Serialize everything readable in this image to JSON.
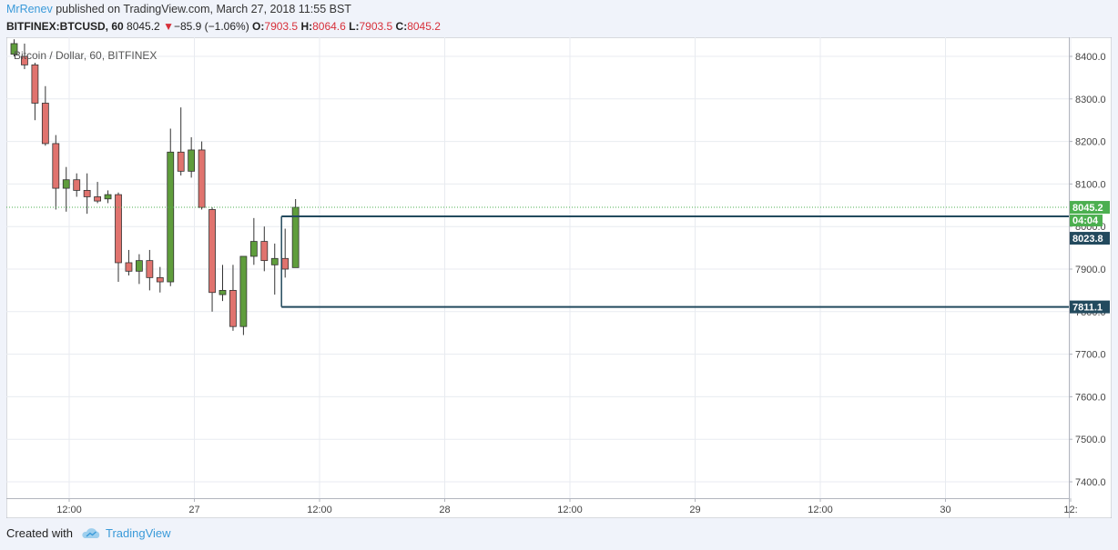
{
  "header": {
    "author": "MrRenev",
    "published_text": " published on TradingView.com, March 27, 2018 11:55 BST",
    "symbol": "BITFINEX:BTCUSD, 60",
    "last": "8045.2",
    "arrow": "▼",
    "change": "−85.9 (−1.06%)",
    "o_label": "O:",
    "o_value": "7903.5",
    "h_label": "H:",
    "h_value": "8064.6",
    "l_label": "L:",
    "l_value": "7903.5",
    "c_label": "C:",
    "c_value": "8045.2"
  },
  "footer": {
    "created_with": "Created with",
    "brand": "TradingView"
  },
  "chart_data": {
    "type": "candlestick",
    "title": "Bitcoin / Dollar, 60, BITFINEX",
    "ylim": [
      7365,
      8430
    ],
    "y_ticks": [
      "8400.0",
      "8300.0",
      "8200.0",
      "8100.0",
      "8000.0",
      "7900.0",
      "7800.0",
      "7700.0",
      "7600.0",
      "7500.0",
      "7400.0"
    ],
    "x_labels": [
      "12:00",
      "27",
      "12:00",
      "28",
      "12:00",
      "29",
      "12:00",
      "30",
      "12:"
    ],
    "candles": [
      {
        "o": 8405,
        "h": 8440,
        "l": 8400,
        "c": 8430
      },
      {
        "o": 8400,
        "h": 8430,
        "l": 8370,
        "c": 8380
      },
      {
        "o": 8380,
        "h": 8385,
        "l": 8250,
        "c": 8290
      },
      {
        "o": 8290,
        "h": 8330,
        "l": 8190,
        "c": 8195
      },
      {
        "o": 8195,
        "h": 8215,
        "l": 8040,
        "c": 8090
      },
      {
        "o": 8090,
        "h": 8140,
        "l": 8035,
        "c": 8110
      },
      {
        "o": 8110,
        "h": 8125,
        "l": 8070,
        "c": 8085
      },
      {
        "o": 8085,
        "h": 8125,
        "l": 8030,
        "c": 8070
      },
      {
        "o": 8070,
        "h": 8105,
        "l": 8055,
        "c": 8060
      },
      {
        "o": 8065,
        "h": 8085,
        "l": 8055,
        "c": 8075
      },
      {
        "o": 8075,
        "h": 8080,
        "l": 7870,
        "c": 7915
      },
      {
        "o": 7915,
        "h": 7945,
        "l": 7885,
        "c": 7895
      },
      {
        "o": 7895,
        "h": 7935,
        "l": 7865,
        "c": 7920
      },
      {
        "o": 7920,
        "h": 7945,
        "l": 7850,
        "c": 7880
      },
      {
        "o": 7880,
        "h": 7905,
        "l": 7845,
        "c": 7870
      },
      {
        "o": 7870,
        "h": 8230,
        "l": 7860,
        "c": 8175
      },
      {
        "o": 8175,
        "h": 8280,
        "l": 8120,
        "c": 8130
      },
      {
        "o": 8130,
        "h": 8210,
        "l": 8115,
        "c": 8180
      },
      {
        "o": 8180,
        "h": 8200,
        "l": 8040,
        "c": 8045
      },
      {
        "o": 8040,
        "h": 8045,
        "l": 7800,
        "c": 7845
      },
      {
        "o": 7840,
        "h": 7910,
        "l": 7825,
        "c": 7850
      },
      {
        "o": 7850,
        "h": 7910,
        "l": 7755,
        "c": 7765
      },
      {
        "o": 7765,
        "h": 7930,
        "l": 7745,
        "c": 7930
      },
      {
        "o": 7930,
        "h": 8020,
        "l": 7910,
        "c": 7965
      },
      {
        "o": 7965,
        "h": 8000,
        "l": 7895,
        "c": 7920
      },
      {
        "o": 7910,
        "h": 7960,
        "l": 7840,
        "c": 7925
      },
      {
        "o": 7925,
        "h": 7995,
        "l": 7880,
        "c": 7900
      },
      {
        "o": 7903.5,
        "h": 8064.6,
        "l": 7903.5,
        "c": 8045.2
      }
    ],
    "current_price": 8045.2,
    "price_label": "8045.2",
    "countdown": "04:04",
    "range_box": {
      "top": 8023.8,
      "bottom": 7811.1,
      "top_label": "8023.8",
      "bottom_label": "7811.1"
    },
    "colors": {
      "up": "#6ba583",
      "up_fill": "#5f9d3c",
      "down": "#d75442",
      "down_fill": "#e0736e",
      "box": "#234a5e",
      "price_line": "#4caf50",
      "grid": "#e8ebf0"
    }
  }
}
